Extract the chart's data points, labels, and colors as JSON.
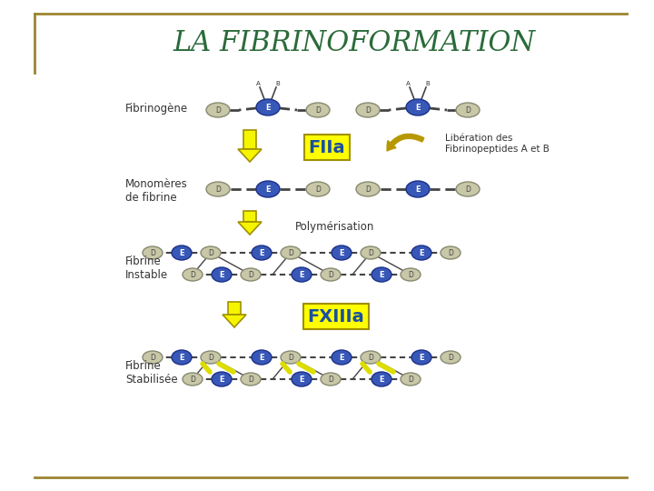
{
  "title": "LA FIBRINOFORMATION",
  "title_color": "#2B6B3A",
  "bg_color": "#FFFFFF",
  "border_color": "#9B8530",
  "fibrinogene_label": "Fibrinogène",
  "monomeres_label": "Monomères\nde fibrine",
  "fibrine_instable_label": "Fibrine\nInstable",
  "fibrine_stable_label": "Fibrine\nStabilisée",
  "fIIa_label": "FIIa",
  "fXIIIa_label": "FXIIIa",
  "liberation_label": "Libération des\nFibrinopeptides A et B",
  "polymerisation_label": "Polymérisation",
  "arrow_color": "#F5F500",
  "arrow_edge_color": "#A09000",
  "D_color": "#C8C8A8",
  "D_edge_color": "#888870",
  "E_color": "#3858B8",
  "E_edge_color": "#1A3088",
  "yellow_box_color": "#FFFF00",
  "yellow_box_text_color": "#1A50A0",
  "curved_arrow_color": "#B89800",
  "line_color": "#444444",
  "label_color": "#333333",
  "crosslink_color": "#DDDD00",
  "title_fontsize": 22,
  "label_fontsize": 8.5
}
